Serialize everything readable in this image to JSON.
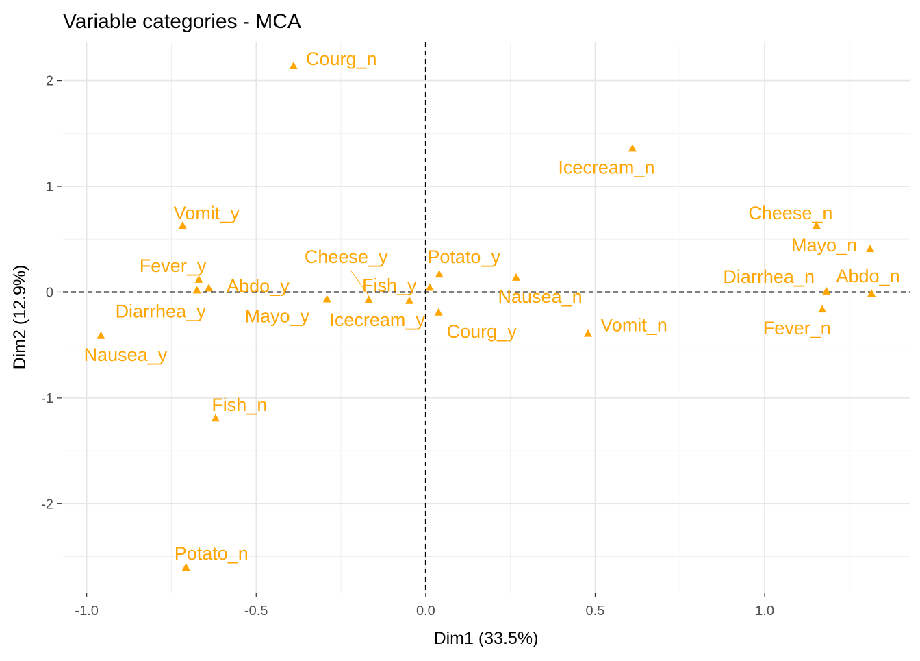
{
  "chart_data": {
    "type": "scatter",
    "title": "Variable categories - MCA",
    "xlabel": "Dim1 (33.5%)",
    "ylabel": "Dim2 (12.9%)",
    "xlim": [
      -1.07,
      1.43
    ],
    "ylim": [
      -2.84,
      2.36
    ],
    "xticks": [
      -1.0,
      -0.5,
      0.0,
      0.5,
      1.0
    ],
    "xtick_labels": [
      "-1.0",
      "-0.5",
      "0.0",
      "0.5",
      "1.0"
    ],
    "yticks": [
      -2,
      -1,
      0,
      1,
      2
    ],
    "ytick_labels": [
      "-2",
      "-1",
      "0",
      "1",
      "2"
    ],
    "grid": true,
    "point_color": "#FFA500",
    "points": [
      {
        "label": "Courg_n",
        "x": -0.39,
        "y": 2.14
      },
      {
        "label": "Icecream_n",
        "x": 0.61,
        "y": 1.36
      },
      {
        "label": "Vomit_y",
        "x": -0.717,
        "y": 0.63
      },
      {
        "label": "Cheese_n",
        "x": 1.153,
        "y": 0.63
      },
      {
        "label": "Mayo_n",
        "x": 1.311,
        "y": 0.41
      },
      {
        "label": "Fever_y",
        "x": -0.669,
        "y": 0.12
      },
      {
        "label": "Abdo_y",
        "x": -0.64,
        "y": 0.04
      },
      {
        "label": "Diarrhea_y",
        "x": -0.675,
        "y": 0.02
      },
      {
        "label": "Potato_y",
        "x": 0.04,
        "y": 0.17
      },
      {
        "label": "Nausea_n",
        "x": 0.267,
        "y": 0.14
      },
      {
        "label": "Fish_y",
        "x": 0.012,
        "y": 0.045
      },
      {
        "label": "Diarrhea_n",
        "x": 1.182,
        "y": 0.01
      },
      {
        "label": "Abdo_n",
        "x": 1.315,
        "y": -0.01
      },
      {
        "label": "Cheese_y",
        "x": -0.168,
        "y": -0.07
      },
      {
        "label": "Mayo_y",
        "x": -0.291,
        "y": -0.065
      },
      {
        "label": "Icecream_y",
        "x": -0.048,
        "y": -0.08
      },
      {
        "label": "Courg_y",
        "x": 0.038,
        "y": -0.19
      },
      {
        "label": "Fever_n",
        "x": 1.17,
        "y": -0.16
      },
      {
        "label": "Vomit_n",
        "x": 0.479,
        "y": -0.39
      },
      {
        "label": "Nausea_y",
        "x": -0.958,
        "y": -0.41
      },
      {
        "label": "Fish_n",
        "x": -0.62,
        "y": -1.19
      },
      {
        "label": "Potato_n",
        "x": -0.707,
        "y": -2.6
      }
    ]
  }
}
